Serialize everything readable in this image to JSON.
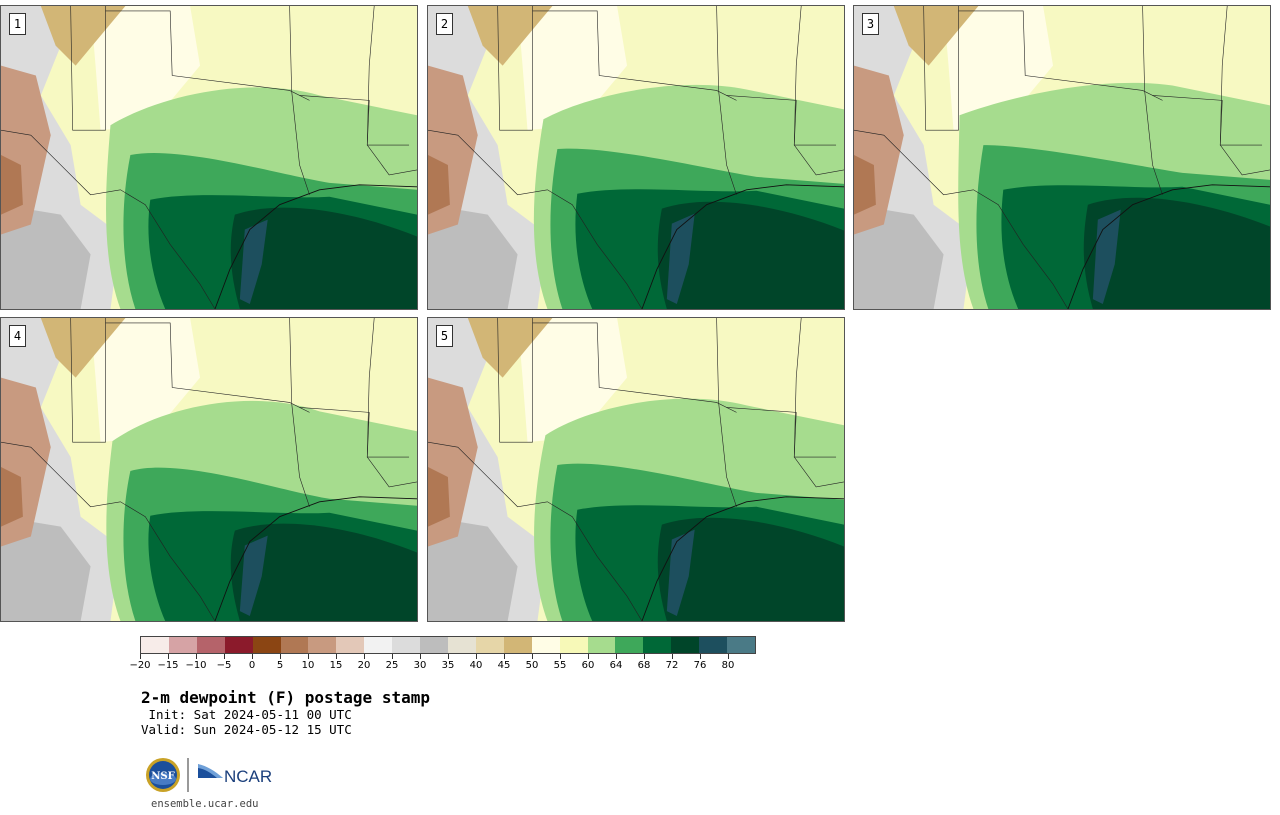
{
  "title": "2-m dewpoint (F) postage stamp",
  "init_text": " Init: Sat 2024-05-11 00 UTC",
  "valid_text": "Valid: Sun 2024-05-12 15 UTC",
  "website": "ensemble.ucar.edu",
  "logos": {
    "nsf": "NSF",
    "ncar": "NCAR"
  },
  "panels": [
    {
      "number": "1"
    },
    {
      "number": "2"
    },
    {
      "number": "3"
    },
    {
      "number": "4"
    },
    {
      "number": "5"
    }
  ],
  "colorbar": {
    "tick_labels": [
      "−20",
      "−15",
      "−10",
      "−5",
      "0",
      "5",
      "10",
      "15",
      "20",
      "25",
      "30",
      "35",
      "40",
      "45",
      "50",
      "55",
      "60",
      "64",
      "68",
      "72",
      "76",
      "80"
    ],
    "colors": [
      "#f7ece9",
      "#d6a3a5",
      "#b5636a",
      "#8b1a2b",
      "#8b4513",
      "#b07854",
      "#c89a80",
      "#e3c8b8",
      "#f2f2f2",
      "#dcdcdc",
      "#bdbdbd",
      "#e6e2d3",
      "#e6d6a8",
      "#d2b676",
      "#fffde6",
      "#f7f9b8",
      "#a6dc8e",
      "#3ea85a",
      "#006837",
      "#004529",
      "#1d4f5e",
      "#4a7a86"
    ]
  }
}
